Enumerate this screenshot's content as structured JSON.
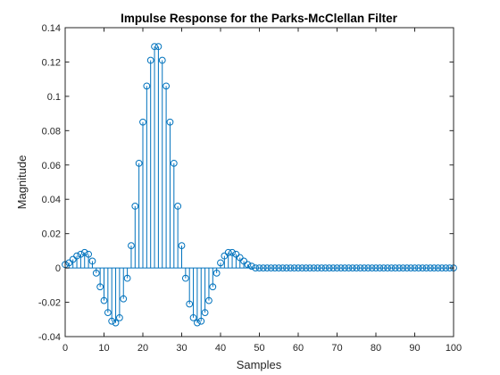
{
  "chart_data": {
    "type": "stem",
    "title": "Impulse Response for the Parks-McClellan Filter",
    "xlabel": "Samples",
    "ylabel": "Magnitude",
    "xlim": [
      0,
      100
    ],
    "ylim": [
      -0.04,
      0.14
    ],
    "xticks": [
      0,
      10,
      20,
      30,
      40,
      50,
      60,
      70,
      80,
      90,
      100
    ],
    "xtick_labels": [
      "0",
      "10",
      "20",
      "30",
      "40",
      "50",
      "60",
      "70",
      "80",
      "90",
      "100"
    ],
    "yticks": [
      -0.04,
      -0.02,
      0,
      0.02,
      0.04,
      0.06,
      0.08,
      0.1,
      0.12,
      0.14
    ],
    "ytick_labels": [
      "-0.04",
      "-0.02",
      "0",
      "0.02",
      "0.04",
      "0.06",
      "0.08",
      "0.1",
      "0.12",
      "0.14"
    ],
    "grid": false,
    "series": [
      {
        "x": [
          0,
          1,
          2,
          3,
          4,
          5,
          6,
          7,
          8,
          9,
          10,
          11,
          12,
          13,
          14,
          15,
          16,
          17,
          18,
          19,
          20,
          21,
          22,
          23,
          24,
          25,
          26,
          27,
          28,
          29,
          30,
          31,
          32,
          33,
          34,
          35,
          36,
          37,
          38,
          39,
          40,
          41,
          42,
          43,
          44,
          45,
          46,
          47,
          48,
          49,
          50,
          51,
          52,
          53,
          54,
          55,
          56,
          57,
          58,
          59,
          60,
          61,
          62,
          63,
          64,
          65,
          66,
          67,
          68,
          69,
          70,
          71,
          72,
          73,
          74,
          75,
          76,
          77,
          78,
          79,
          80,
          81,
          82,
          83,
          84,
          85,
          86,
          87,
          88,
          89,
          90,
          91,
          92,
          93,
          94,
          95,
          96,
          97,
          98,
          99,
          100
        ],
        "values": [
          0.002,
          0.003,
          0.005,
          0.007,
          0.008,
          0.009,
          0.008,
          0.004,
          -0.003,
          -0.011,
          -0.019,
          -0.026,
          -0.031,
          -0.032,
          -0.029,
          -0.018,
          -0.006,
          0.013,
          0.036,
          0.061,
          0.085,
          0.106,
          0.121,
          0.129,
          0.129,
          0.121,
          0.106,
          0.085,
          0.061,
          0.036,
          0.013,
          -0.006,
          -0.021,
          -0.029,
          -0.032,
          -0.031,
          -0.026,
          -0.019,
          -0.011,
          -0.003,
          0.003,
          0.007,
          0.009,
          0.009,
          0.008,
          0.006,
          0.004,
          0.002,
          0.001,
          0.0,
          0,
          0,
          0,
          0,
          0,
          0,
          0,
          0,
          0,
          0,
          0,
          0,
          0,
          0,
          0,
          0,
          0,
          0,
          0,
          0,
          0,
          0,
          0,
          0,
          0,
          0,
          0,
          0,
          0,
          0,
          0,
          0,
          0,
          0,
          0,
          0,
          0,
          0,
          0,
          0,
          0,
          0,
          0,
          0,
          0,
          0,
          0,
          0,
          0,
          0,
          0
        ]
      }
    ]
  },
  "colors": {
    "stem": "#0072bd",
    "axis": "#262626",
    "background": "#ffffff",
    "figure": "#ffffff"
  }
}
